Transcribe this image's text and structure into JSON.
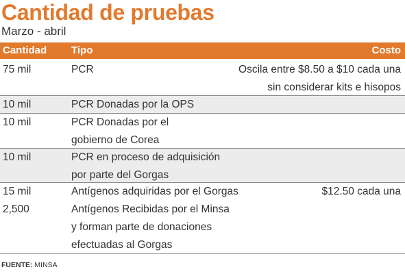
{
  "title": "Cantidad de pruebas",
  "subtitle": "Marzo - abril",
  "headers": {
    "cantidad": "Cantidad",
    "tipo": "Tipo",
    "costo": "Costo"
  },
  "rows": [
    {
      "cantidad": [
        "75 mil"
      ],
      "tipo": [
        "PCR"
      ],
      "costo": [
        "Oscila entre $8.50 a $10 cada una",
        "sin considerar kits e hisopos"
      ]
    },
    {
      "cantidad": [
        "10 mil"
      ],
      "tipo": [
        "PCR Donadas por la OPS"
      ],
      "costo": []
    },
    {
      "cantidad": [
        "10 mil"
      ],
      "tipo": [
        "PCR Donadas por el",
        "gobierno de Corea"
      ],
      "costo": []
    },
    {
      "cantidad": [
        "10 mil"
      ],
      "tipo": [
        "PCR en proceso de adquisición",
        "por parte del Gorgas"
      ],
      "costo": []
    },
    {
      "cantidad": [
        "15 mil",
        "2,500"
      ],
      "tipo": [
        "Antígenos adquiridas por el Gorgas",
        "Antígenos Recibidas por el Minsa",
        "y forman parte de donaciones",
        "efectuadas al Gorgas"
      ],
      "costo": [
        "$12.50 cada una"
      ]
    }
  ],
  "source": {
    "label": "FUENTE:",
    "text": "MINSA"
  },
  "colors": {
    "accent": "#e27a2e",
    "shaded_row": "#ececec",
    "text": "#333333"
  }
}
